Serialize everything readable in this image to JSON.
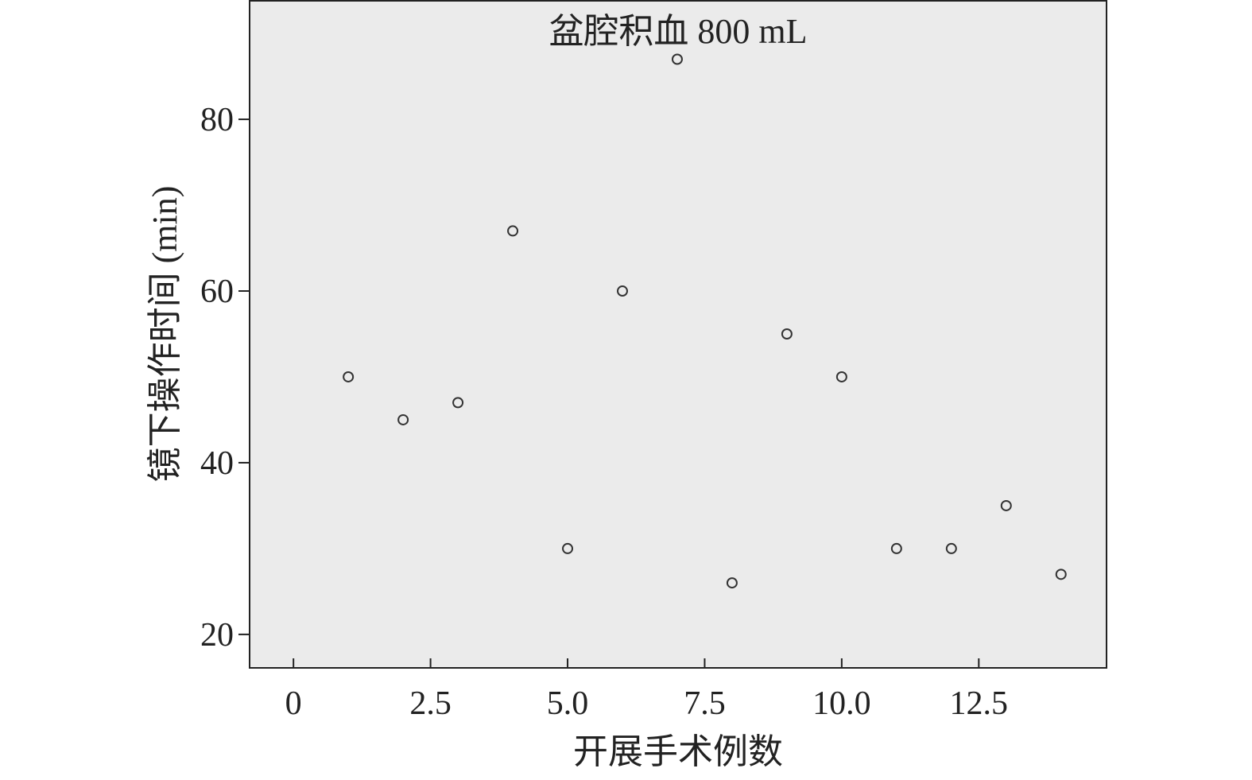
{
  "chart_data": {
    "type": "scatter",
    "title": "盆腔积血 800 mL",
    "xlabel": "开展手术例数",
    "ylabel": "镜下操作时间 (min)",
    "x": [
      1,
      2,
      3,
      4,
      5,
      6,
      7,
      8,
      9,
      10,
      11,
      12,
      13,
      14
    ],
    "y": [
      50,
      45,
      47,
      67,
      30,
      60,
      87,
      26,
      55,
      50,
      30,
      30,
      35,
      27
    ],
    "xlim": [
      -0.8,
      14.83
    ],
    "ylim": [
      16.1,
      93.9
    ],
    "xticks": [
      0,
      2.5,
      5.0,
      7.5,
      10.0,
      12.5
    ],
    "xtick_labels": [
      "0",
      "2.5",
      "5.0",
      "7.5",
      "10.0",
      "12.5"
    ],
    "yticks": [
      20,
      40,
      60,
      80
    ],
    "ytick_labels": [
      "20",
      "40",
      "60",
      "80"
    ],
    "grid": false,
    "marker": "hollow circle",
    "colors": {
      "panel": "#ebebeb",
      "marker": "#333333",
      "axis": "#222222"
    }
  }
}
